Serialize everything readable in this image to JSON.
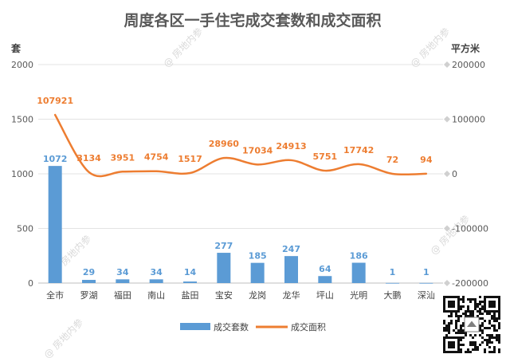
{
  "watermark": "@ 房地内参",
  "chart_data": {
    "type": "bar",
    "title": "周度各区一手住宅成交套数和成交面积",
    "categories": [
      "全市",
      "罗湖",
      "福田",
      "南山",
      "盐田",
      "宝安",
      "龙岗",
      "龙华",
      "坪山",
      "光明",
      "大鹏",
      "深汕"
    ],
    "y_left": {
      "unit": "套",
      "ylim": [
        0,
        2000
      ],
      "ticks": [
        "0",
        "500",
        "1000",
        "1500",
        "2000"
      ]
    },
    "y_right": {
      "unit": "平方米",
      "ylim": [
        -200000,
        200000
      ],
      "ticks": [
        "-200000",
        "-100000",
        "0",
        "100000",
        "200000"
      ]
    },
    "grid": true,
    "legend_position": "bottom",
    "series": [
      {
        "name": "成交套数",
        "type": "bar",
        "axis": "left",
        "color": "#5b9bd5",
        "values": [
          1072,
          29,
          34,
          34,
          14,
          277,
          185,
          247,
          64,
          186,
          1,
          1
        ]
      },
      {
        "name": "成交面积",
        "type": "line",
        "axis": "right",
        "smooth": true,
        "color": "#ed7d31",
        "values": [
          107921,
          3134,
          3951,
          4754,
          1517,
          28960,
          17034,
          24913,
          5751,
          17742,
          72,
          94
        ]
      }
    ]
  }
}
